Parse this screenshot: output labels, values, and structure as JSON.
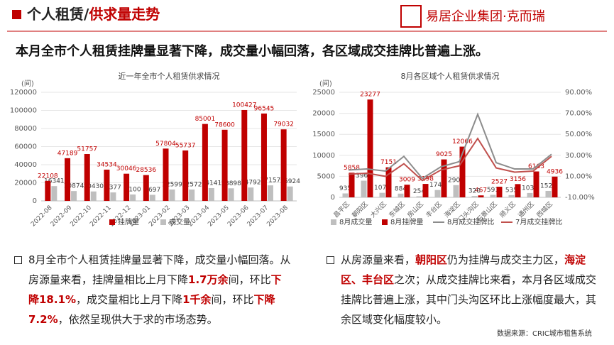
{
  "header": {
    "title": "个人租赁/",
    "title_emphasis": "供求量走势",
    "logo": "易居企业集团·克而瑞"
  },
  "headline": "本月全市个人租赁挂牌量显著下降，成交量小幅回落，各区域成交挂牌比普遍上涨。",
  "chart_data": [
    {
      "type": "bar",
      "title": "近一年全市个人租赁供求情况",
      "ylabel": "(间)",
      "categories": [
        "2022-08",
        "2022-09",
        "2022-10",
        "2022-11",
        "2022-12",
        "2023-01",
        "2023-02",
        "2023-03",
        "2023-04",
        "2023-05",
        "2023-06",
        "2023-07",
        "2023-08"
      ],
      "series": [
        {
          "name": "挂牌量",
          "color": "#c00000",
          "values": [
            22108,
            47189,
            51757,
            34534,
            30046,
            28536,
            57804,
            55737,
            85001,
            78600,
            100427,
            96545,
            79032
          ]
        },
        {
          "name": "成交量",
          "color": "#bfbfbf",
          "values": [
            16341,
            10874,
            10430,
            9377,
            7100,
            6697,
            12599,
            12572,
            14141,
            13898,
            14792,
            17157,
            15924
          ]
        }
      ],
      "ylim": [
        0,
        120000
      ],
      "yticks": [
        0,
        20000,
        40000,
        60000,
        80000,
        100000,
        120000
      ],
      "grid": true,
      "legend": "bottom"
    },
    {
      "type": "combo",
      "title": "8月各区域个人租赁供求情况",
      "ylabel": "(间)",
      "categories": [
        "昌平区",
        "朝阳区",
        "大兴区",
        "东城区",
        "房山区",
        "丰台区",
        "海淀区",
        "门头沟区",
        "石景山区",
        "顺义区",
        "通州区",
        "西城区"
      ],
      "series": [
        {
          "name": "8月成交量",
          "color": "#bfbfbf",
          "values": [
            935,
            3964,
            1076,
            884,
            254,
            1741,
            2904,
            320,
            591,
            535,
            1030,
            1525
          ]
        },
        {
          "name": "8月挂牌量",
          "color": "#c00000",
          "values": [
            5858,
            23277,
            7151,
            3009,
            3198,
            9025,
            12066,
            467,
            2527,
            3156,
            6163,
            4936
          ]
        },
        {
          "name": "8月成交挂牌比",
          "color": "#8c8c8c",
          "axis": "y2",
          "values": [
            16,
            17,
            15,
            29,
            8,
            19,
            24,
            69,
            23,
            17,
            17,
            31
          ]
        },
        {
          "name": "7月成交挂牌比",
          "color": "#c0504d",
          "axis": "y2",
          "values": [
            12,
            13,
            10,
            22,
            6,
            16,
            20,
            46,
            18,
            14,
            15,
            29
          ]
        }
      ],
      "ylim": [
        0,
        25000
      ],
      "yticks": [
        0,
        5000,
        10000,
        15000,
        20000,
        25000
      ],
      "y2lim": [
        -10,
        90
      ],
      "y2ticks": [
        {
          "value": -10,
          "label": "-10.00%"
        },
        {
          "value": 10,
          "label": "10.00%"
        },
        {
          "value": 30,
          "label": "30.00%"
        },
        {
          "value": 50,
          "label": "50.00%"
        },
        {
          "value": 70,
          "label": "70.00%"
        },
        {
          "value": 90,
          "label": "90.00%"
        }
      ],
      "grid": true,
      "legend": "bottom"
    }
  ],
  "bullets": [
    [
      {
        "text": "8月全市个人租赁挂牌量显著下降，成交量小幅回落。从房源量来看，挂牌量相比上月下降"
      },
      {
        "text": "1.7万余",
        "emphasis": true
      },
      {
        "text": "间，环比"
      },
      {
        "text": "下降18.1%",
        "emphasis": true
      },
      {
        "text": "，成交量相比上月下降"
      },
      {
        "text": "1千余",
        "emphasis": true
      },
      {
        "text": "间，环比"
      },
      {
        "text": "下降7.2%",
        "emphasis": true
      },
      {
        "text": "，依然呈现供大于求的市场态势。"
      }
    ],
    [
      {
        "text": "从房源量来看，"
      },
      {
        "text": "朝阳区",
        "emphasis": true
      },
      {
        "text": "仍为挂牌与成交主力区，"
      },
      {
        "text": "海淀区、丰台区",
        "emphasis": true
      },
      {
        "text": "之次；从成交挂牌比来看，本月各区域成交挂牌比普遍上涨，其中门头沟区环比上涨幅度最大，其余区域变化幅度较小。"
      }
    ]
  ],
  "source": "数据来源：CRIC城市租售系统"
}
